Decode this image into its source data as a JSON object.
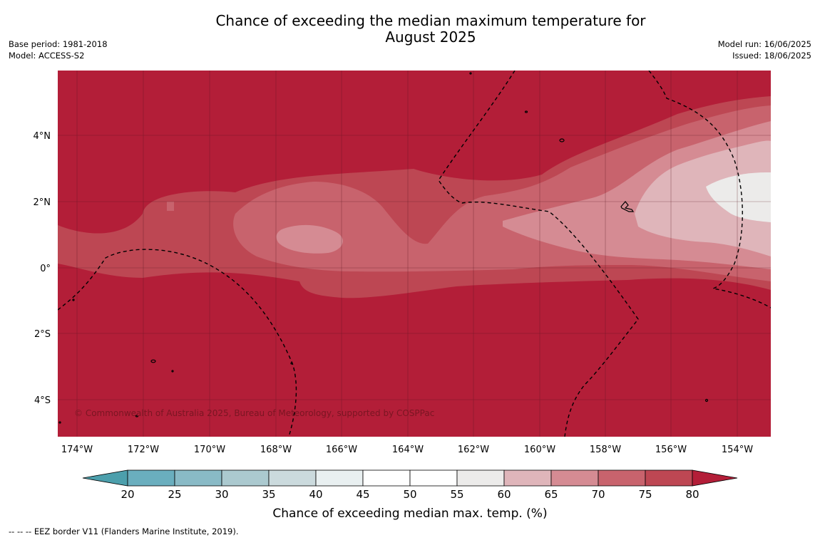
{
  "title": {
    "line1": "Chance of exceeding the median maximum temperature for",
    "line2": "August 2025"
  },
  "meta_left": {
    "line1": "Base period: 1981-2018",
    "line2": "Model: ACCESS-S2"
  },
  "meta_right": {
    "line1": "Model run: 16/06/2025",
    "line2": "Issued: 18/06/2025"
  },
  "map": {
    "lon_labels": [
      "174°W",
      "172°W",
      "170°W",
      "168°W",
      "166°W",
      "164°W",
      "162°W",
      "160°W",
      "158°W",
      "156°W",
      "154°W"
    ],
    "lat_labels": [
      "4°N",
      "2°N",
      "0°",
      "2°S",
      "4°S"
    ],
    "credit": "© Commonwealth of Australia 2025, Bureau of Meteorology, supported by COSPPac",
    "dominant_category_color": "#b31e38",
    "grid": true
  },
  "colorbar": {
    "title": "Chance of exceeding median max. temp. (%)",
    "ticks": [
      "20",
      "25",
      "30",
      "35",
      "40",
      "45",
      "50",
      "55",
      "60",
      "65",
      "70",
      "75",
      "80"
    ],
    "colors": [
      "#4c9fac",
      "#6aaebe",
      "#89bac6",
      "#abc9cf",
      "#cbdadd",
      "#e9f0f1",
      "#ffffff",
      "#ffffff",
      "#ecebea",
      "#dfb5ba",
      "#d58b93",
      "#c8636d",
      "#bd4753",
      "#b31e38"
    ]
  },
  "footnote": "--  --  -- EEZ border V11 (Flanders Marine Institute, 2019)."
}
